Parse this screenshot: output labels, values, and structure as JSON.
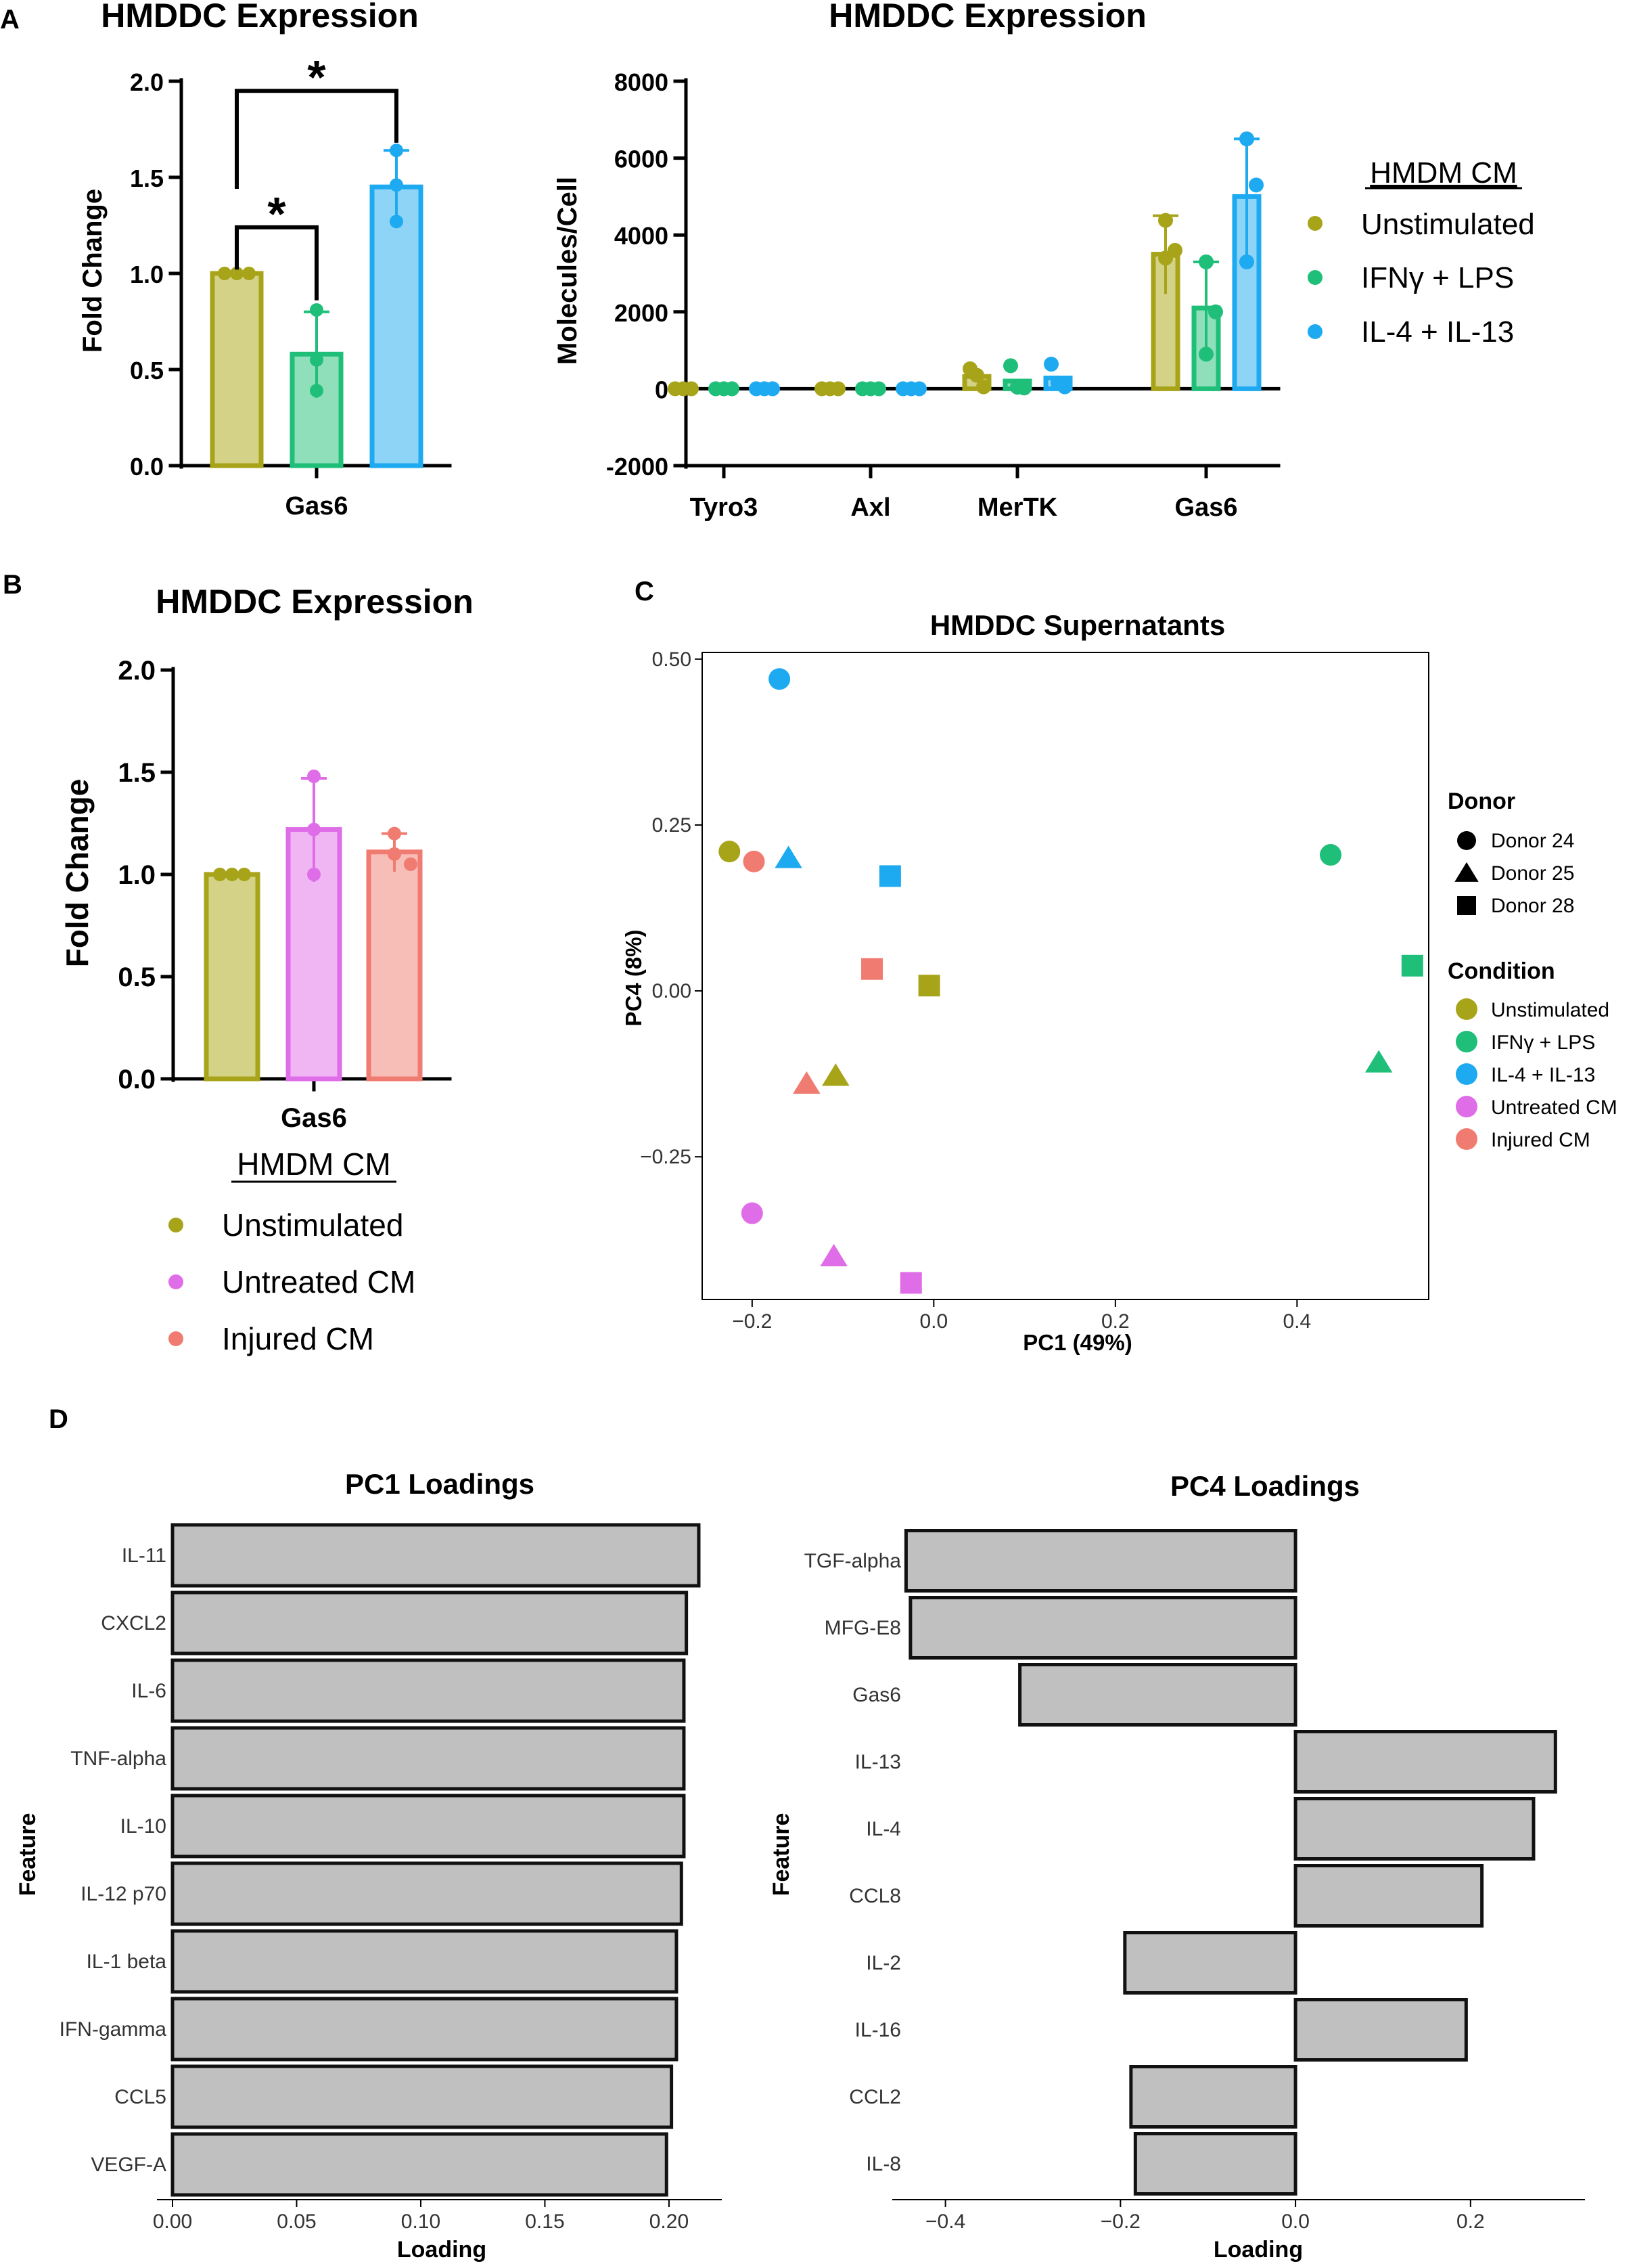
{
  "figure": {
    "panel_labels": [
      "A",
      "B",
      "C",
      "D"
    ],
    "colors": {
      "unstim": "#a8a419",
      "unstim_fill": "#d3d287",
      "ifn": "#1fbf7a",
      "ifn_fill": "#8fdfbb",
      "il4": "#1eaaf0",
      "il4_fill": "#8ed4f7",
      "untreated": "#e06de8",
      "untreated_fill": "#efb6f3",
      "injured": "#f07b70",
      "injured_fill": "#f7bdb7",
      "gray_bar": "#c0c0c0"
    },
    "legend_a": {
      "title": "HMDM CM",
      "items": [
        {
          "label": "Unstimulated",
          "color": "#a8a419"
        },
        {
          "label": "IFNγ + LPS",
          "color": "#1fbf7a"
        },
        {
          "label": "IL-4 + IL-13",
          "color": "#1eaaf0"
        }
      ]
    },
    "legend_b": {
      "title": "HMDM CM",
      "items": [
        {
          "label": "Unstimulated",
          "color": "#a8a419"
        },
        {
          "label": "Untreated CM",
          "color": "#e06de8"
        },
        {
          "label": "Injured CM",
          "color": "#f07b70"
        }
      ]
    }
  },
  "chart_data": [
    {
      "id": "A1",
      "type": "bar",
      "title": "HMDDC Expression",
      "xlabel": "Gas6",
      "ylabel": "Fold Change",
      "ylim": [
        0,
        2.0
      ],
      "yticks": [
        "0.0",
        "0.5",
        "1.0",
        "1.5",
        "2.0"
      ],
      "categories": [
        "Gas6"
      ],
      "series": [
        {
          "name": "Unstimulated",
          "value": 1.0,
          "error": 0.0,
          "points": [
            1.0,
            1.0,
            1.0
          ]
        },
        {
          "name": "IFNγ + LPS",
          "value": 0.58,
          "error": 0.22,
          "points": [
            0.81,
            0.55,
            0.39
          ]
        },
        {
          "name": "IL-4 + IL-13",
          "value": 1.45,
          "error": 0.19,
          "points": [
            1.64,
            1.46,
            1.27
          ]
        }
      ],
      "significance": [
        {
          "from": "Unstimulated",
          "to": "IFNγ + LPS",
          "label": "*"
        },
        {
          "from": "Unstimulated",
          "to": "IL-4 + IL-13",
          "label": "*"
        }
      ]
    },
    {
      "id": "A2",
      "type": "bar",
      "title": "HMDDC Expression",
      "ylabel": "Molecules/Cell",
      "ylim": [
        -2000,
        8000
      ],
      "yticks": [
        "-2000",
        "0",
        "2000",
        "4000",
        "6000",
        "8000"
      ],
      "categories": [
        "Tyro3",
        "Axl",
        "MerTK",
        "Gas6"
      ],
      "series": [
        {
          "name": "Unstimulated",
          "values": [
            0,
            0,
            320,
            3500
          ],
          "errors": [
            0,
            0,
            0,
            1000
          ],
          "points": [
            [
              0,
              0,
              0
            ],
            [
              0,
              0,
              0
            ],
            [
              520,
              350,
              50
            ],
            [
              4380,
              3600,
              3400
            ]
          ]
        },
        {
          "name": "IFNγ + LPS",
          "values": [
            0,
            0,
            200,
            2100
          ],
          "errors": [
            0,
            0,
            0,
            1200
          ],
          "points": [
            [
              0,
              0,
              0
            ],
            [
              0,
              0,
              0
            ],
            [
              600,
              40,
              20
            ],
            [
              3300,
              2000,
              900
            ]
          ]
        },
        {
          "name": "IL-4 + IL-13",
          "values": [
            0,
            0,
            280,
            5000
          ],
          "errors": [
            0,
            0,
            0,
            1500
          ],
          "points": [
            [
              0,
              0,
              0
            ],
            [
              0,
              0,
              0
            ],
            [
              640,
              150,
              50
            ],
            [
              6500,
              5300,
              3300
            ]
          ]
        }
      ]
    },
    {
      "id": "B",
      "type": "bar",
      "title": "HMDDC Expression",
      "xlabel": "Gas6",
      "ylabel": "Fold Change",
      "ylim": [
        0,
        2.0
      ],
      "yticks": [
        "0.0",
        "0.5",
        "1.0",
        "1.5",
        "2.0"
      ],
      "categories": [
        "Gas6"
      ],
      "series": [
        {
          "name": "Unstimulated",
          "value": 1.0,
          "error": 0.0,
          "points": [
            1.0,
            1.0,
            1.0
          ]
        },
        {
          "name": "Untreated CM",
          "value": 1.22,
          "error": 0.25,
          "points": [
            1.48,
            1.22,
            1.0
          ]
        },
        {
          "name": "Injured CM",
          "value": 1.11,
          "error": 0.09,
          "points": [
            1.2,
            1.1,
            1.05
          ]
        }
      ]
    },
    {
      "id": "C",
      "type": "scatter",
      "title": "HMDDC Supernatants",
      "xlabel": "PC1 (49%)",
      "ylabel": "PC4 (8%)",
      "xlim": [
        -0.255,
        0.545
      ],
      "ylim": [
        -0.465,
        0.51
      ],
      "xticks": [
        "−0.2",
        "0.0",
        "0.2",
        "0.4"
      ],
      "xtick_values": [
        -0.2,
        0.0,
        0.2,
        0.4
      ],
      "yticks": [
        "−0.25",
        "0.00",
        "0.25",
        "0.50"
      ],
      "ytick_values": [
        -0.25,
        0.0,
        0.25,
        0.5
      ],
      "legend_donor": {
        "title": "Donor",
        "items": [
          {
            "label": "Donor 24",
            "shape": "circle"
          },
          {
            "label": "Donor 25",
            "shape": "triangle"
          },
          {
            "label": "Donor 28",
            "shape": "square"
          }
        ]
      },
      "legend_condition": {
        "title": "Condition",
        "items": [
          {
            "label": "Unstimulated",
            "color": "#a8a419"
          },
          {
            "label": "IFNγ + LPS",
            "color": "#1fbf7a"
          },
          {
            "label": "IL-4 + IL-13",
            "color": "#1eaaf0"
          },
          {
            "label": "Untreated CM",
            "color": "#e06de8"
          },
          {
            "label": "Injured CM",
            "color": "#f07b70"
          }
        ]
      },
      "points": [
        {
          "x": -0.17,
          "y": 0.47,
          "shape": "circle",
          "condition": "IL-4 + IL-13"
        },
        {
          "x": -0.225,
          "y": 0.21,
          "shape": "circle",
          "condition": "Unstimulated"
        },
        {
          "x": -0.198,
          "y": 0.195,
          "shape": "circle",
          "condition": "Injured CM"
        },
        {
          "x": -0.16,
          "y": 0.2,
          "shape": "triangle",
          "condition": "IL-4 + IL-13"
        },
        {
          "x": -0.048,
          "y": 0.173,
          "shape": "square",
          "condition": "IL-4 + IL-13"
        },
        {
          "x": -0.068,
          "y": 0.033,
          "shape": "square",
          "condition": "Injured CM"
        },
        {
          "x": -0.005,
          "y": 0.008,
          "shape": "square",
          "condition": "Unstimulated"
        },
        {
          "x": 0.437,
          "y": 0.205,
          "shape": "circle",
          "condition": "IFNγ + LPS"
        },
        {
          "x": 0.527,
          "y": 0.038,
          "shape": "square",
          "condition": "IFNγ + LPS"
        },
        {
          "x": 0.49,
          "y": -0.108,
          "shape": "triangle",
          "condition": "IFNγ + LPS"
        },
        {
          "x": -0.108,
          "y": -0.128,
          "shape": "triangle",
          "condition": "Unstimulated"
        },
        {
          "x": -0.14,
          "y": -0.14,
          "shape": "triangle",
          "condition": "Injured CM"
        },
        {
          "x": -0.2,
          "y": -0.335,
          "shape": "circle",
          "condition": "Untreated CM"
        },
        {
          "x": -0.11,
          "y": -0.4,
          "shape": "triangle",
          "condition": "Untreated CM"
        },
        {
          "x": -0.025,
          "y": -0.44,
          "shape": "square",
          "condition": "Untreated CM"
        }
      ]
    },
    {
      "id": "D1",
      "type": "bar",
      "orientation": "horizontal",
      "title": "PC1 Loadings",
      "xlabel": "Loading",
      "ylabel": "Feature",
      "xlim": [
        -0.006,
        0.221
      ],
      "xticks": [
        "0.00",
        "0.05",
        "0.10",
        "0.15",
        "0.20"
      ],
      "xtick_values": [
        0.0,
        0.05,
        0.1,
        0.15,
        0.2
      ],
      "categories": [
        "IL-11",
        "CXCL2",
        "IL-6",
        "TNF-alpha",
        "IL-10",
        "IL-12 p70",
        "IL-1 beta",
        "IFN-gamma",
        "CCL5",
        "VEGF-A"
      ],
      "values": [
        0.212,
        0.207,
        0.206,
        0.206,
        0.206,
        0.205,
        0.203,
        0.203,
        0.201,
        0.199
      ]
    },
    {
      "id": "D2",
      "type": "bar",
      "orientation": "horizontal",
      "title": "PC4 Loadings",
      "xlabel": "Loading",
      "ylabel": "Feature",
      "xlim": [
        -0.46,
        0.33
      ],
      "xticks": [
        "−0.4",
        "−0.2",
        "0.0",
        "0.2"
      ],
      "xtick_values": [
        -0.4,
        -0.2,
        0.0,
        0.2
      ],
      "categories": [
        "TGF-alpha",
        "MFG-E8",
        "Gas6",
        "IL-13",
        "IL-4",
        "CCL8",
        "IL-2",
        "IL-16",
        "CCL2",
        "IL-8"
      ],
      "values": [
        -0.445,
        -0.44,
        -0.315,
        0.297,
        0.272,
        0.213,
        -0.195,
        0.195,
        -0.188,
        -0.183
      ]
    }
  ]
}
